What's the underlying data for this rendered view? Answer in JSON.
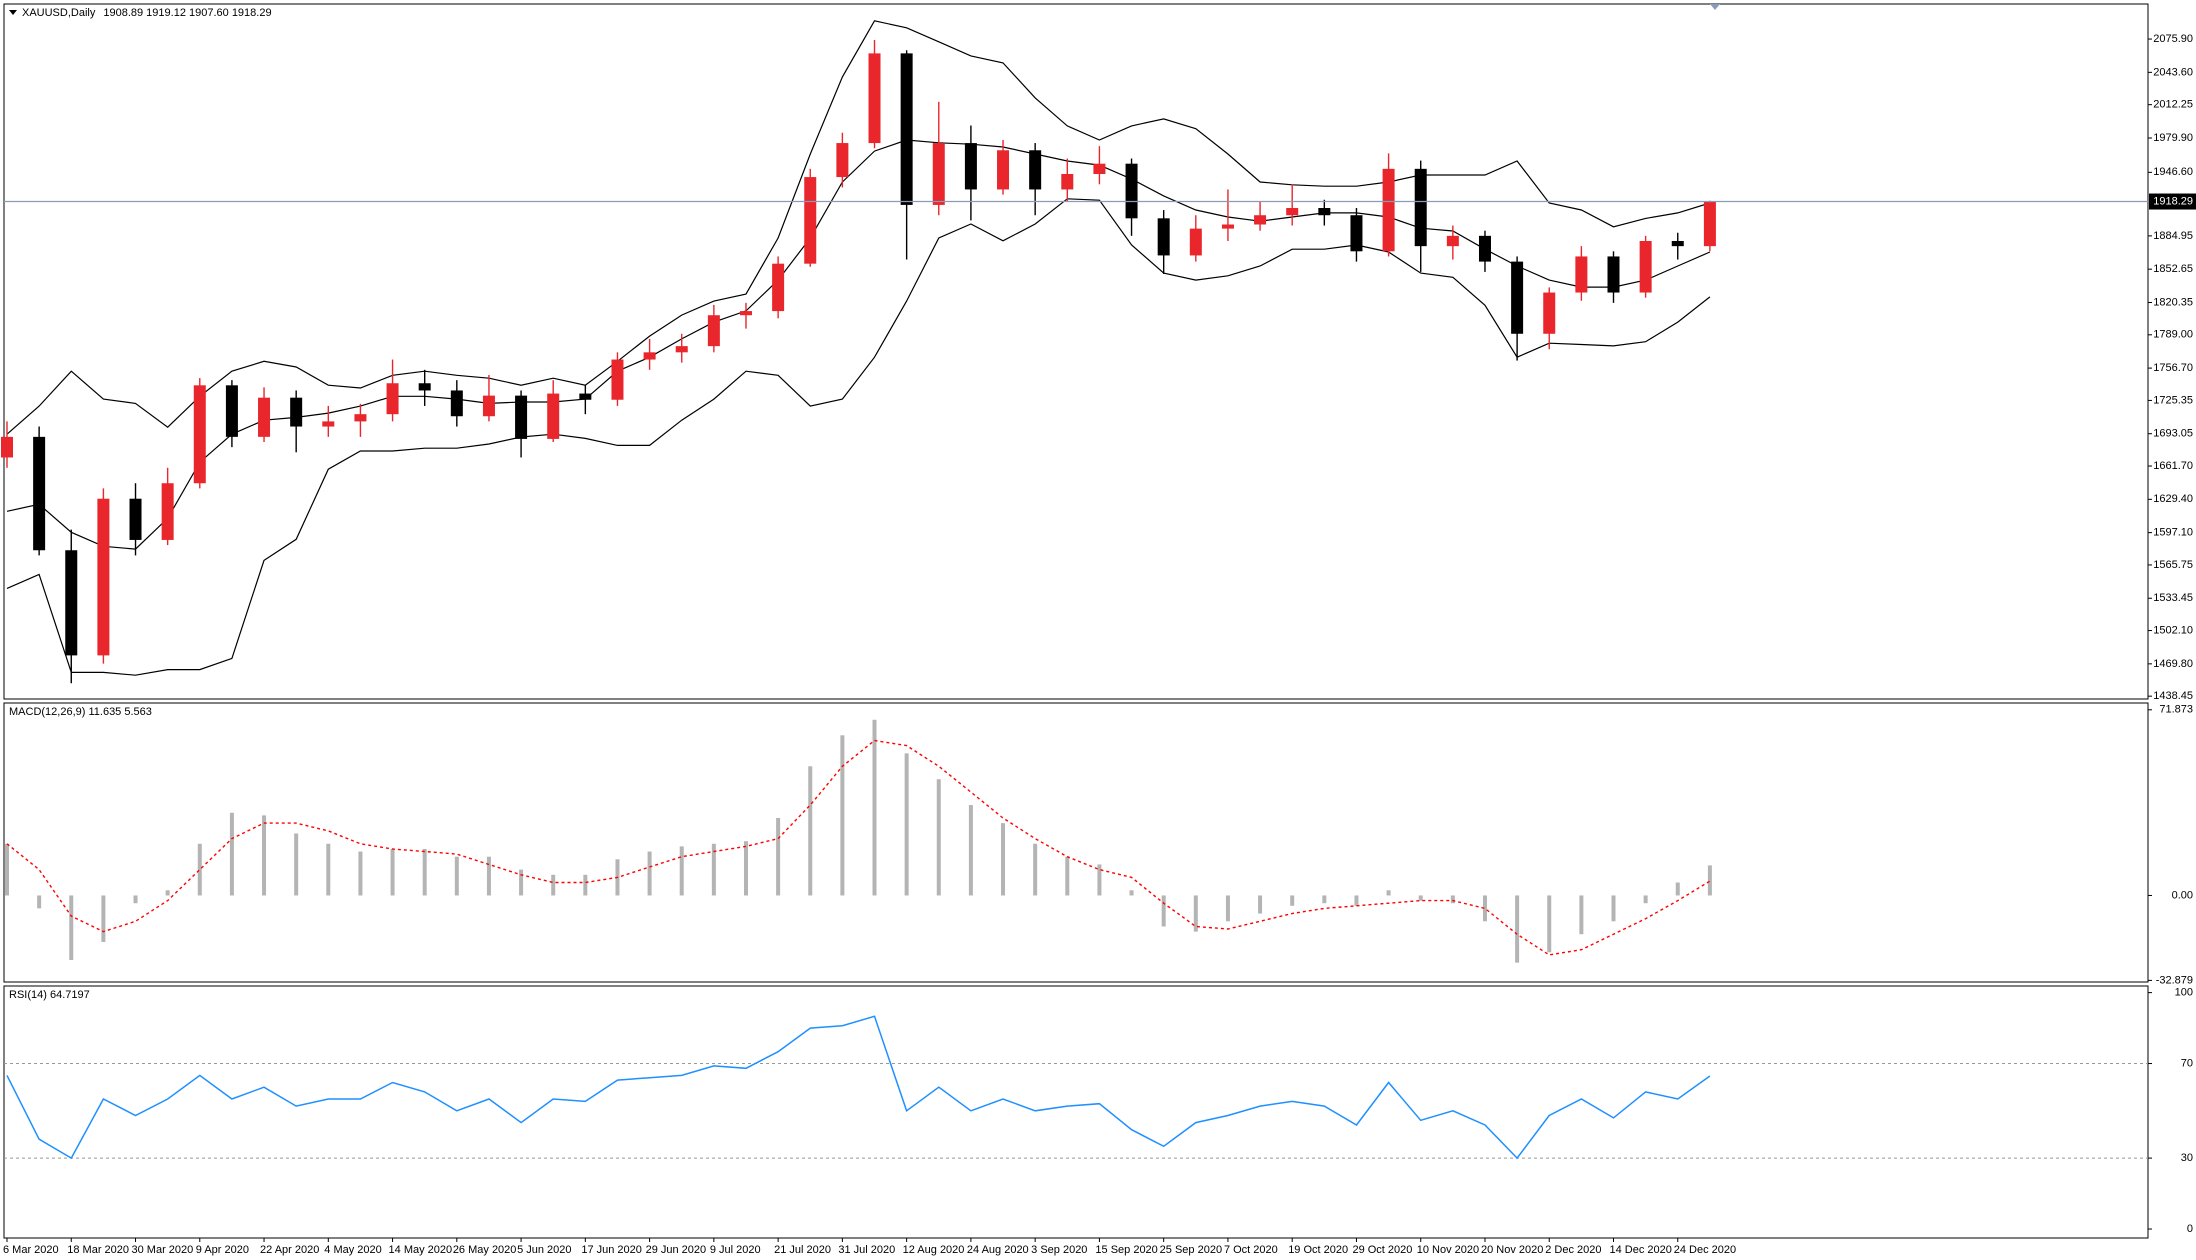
{
  "chart_data": [
    {
      "type": "candlestick",
      "title": "XAUUSD,Daily",
      "info": "1908.89 1919.12 1907.60 1918.29",
      "categories": [
        "6 Mar 2020",
        null,
        "18 Mar 2020",
        null,
        "30 Mar 2020",
        null,
        "9 Apr 2020",
        null,
        "22 Apr 2020",
        null,
        "4 May 2020",
        null,
        "14 May 2020",
        null,
        "26 May 2020",
        null,
        "5 Jun 2020",
        null,
        "17 Jun 2020",
        null,
        "29 Jun 2020",
        null,
        "9 Jul 2020",
        null,
        "21 Jul 2020",
        null,
        "31 Jul 2020",
        null,
        "12 Aug 2020",
        null,
        "24 Aug 2020",
        null,
        "3 Sep 2020",
        null,
        "15 Sep 2020",
        null,
        "25 Sep 2020",
        null,
        "7 Oct 2020",
        null,
        "19 Oct 2020",
        null,
        "29 Oct 2020",
        null,
        "10 Nov 2020",
        null,
        "20 Nov 2020",
        null,
        "2 Dec 2020",
        null,
        "14 Dec 2020",
        null,
        "24 Dec 2020",
        null
      ],
      "open": [
        1670,
        1690,
        1580,
        1478,
        1630,
        1590,
        1645,
        1740,
        1690,
        1728,
        1700,
        1705,
        1712,
        1742,
        1735,
        1710,
        1730,
        1688,
        1732,
        1726,
        1765,
        1772,
        1778,
        1808,
        1812,
        1858,
        1942,
        1975,
        2062,
        1915,
        1975,
        1930,
        1968,
        1930,
        1945,
        1955,
        1902,
        1866,
        1892,
        1896,
        1905,
        1912,
        1905,
        1870,
        1950,
        1875,
        1885,
        1860,
        1790,
        1830,
        1865,
        1830,
        1880,
        1875
      ],
      "high": [
        1705,
        1700,
        1600,
        1640,
        1645,
        1660,
        1747,
        1745,
        1738,
        1735,
        1720,
        1722,
        1765,
        1755,
        1745,
        1750,
        1735,
        1745,
        1740,
        1772,
        1785,
        1790,
        1818,
        1820,
        1865,
        1950,
        1985,
        2075,
        2065,
        2015,
        1992,
        1978,
        1975,
        1960,
        1972,
        1960,
        1910,
        1905,
        1930,
        1918,
        1935,
        1920,
        1912,
        1965,
        1958,
        1895,
        1890,
        1865,
        1835,
        1875,
        1870,
        1885,
        1888,
        1919.12
      ],
      "low": [
        1660,
        1575,
        1451,
        1470,
        1575,
        1585,
        1640,
        1680,
        1685,
        1675,
        1690,
        1690,
        1705,
        1720,
        1700,
        1705,
        1670,
        1685,
        1712,
        1720,
        1755,
        1762,
        1772,
        1795,
        1805,
        1855,
        1932,
        1970,
        1862,
        1905,
        1900,
        1925,
        1905,
        1918,
        1935,
        1885,
        1848,
        1860,
        1880,
        1890,
        1895,
        1895,
        1860,
        1865,
        1850,
        1862,
        1850,
        1764,
        1775,
        1822,
        1820,
        1825,
        1862,
        1870
      ],
      "close": [
        1690,
        1580,
        1478,
        1630,
        1590,
        1645,
        1740,
        1690,
        1728,
        1700,
        1705,
        1712,
        1742,
        1735,
        1710,
        1730,
        1688,
        1732,
        1726,
        1765,
        1772,
        1778,
        1808,
        1812,
        1858,
        1942,
        1975,
        2062,
        1915,
        1975,
        1930,
        1968,
        1930,
        1945,
        1955,
        1902,
        1866,
        1892,
        1896,
        1905,
        1912,
        1905,
        1870,
        1950,
        1875,
        1885,
        1860,
        1790,
        1830,
        1865,
        1830,
        1880,
        1875,
        1918.29
      ],
      "bands": {
        "upper": [
          1692.6,
          1719.8,
          1753.7,
          1726.6,
          1722.5,
          1699.4,
          1729.3,
          1753.7,
          1763.3,
          1757.8,
          1740.1,
          1737.4,
          1749.7,
          1753.7,
          1749.7,
          1746.9,
          1740.1,
          1746.9,
          1740.1,
          1763.3,
          1787.7,
          1808.1,
          1821.7,
          1828.5,
          1882.9,
          1964.4,
          2039.2,
          2093.6,
          2086.8,
          2073.2,
          2059.6,
          2052.8,
          2018.8,
          1991.6,
          1978.0,
          1991.6,
          1998.4,
          1988.9,
          1964.4,
          1937.2,
          1934.5,
          1933.2,
          1933.2,
          1937.2,
          1944.0,
          1944.0,
          1944.0,
          1957.6,
          1916.9,
          1910.1,
          1893.8,
          1901.9,
          1907.3,
          1916.9
        ],
        "middle": [
          1617.8,
          1624.6,
          1597.4,
          1583.8,
          1581.1,
          1611.0,
          1665.4,
          1692.6,
          1706.2,
          1708.9,
          1713.0,
          1719.8,
          1729.3,
          1729.3,
          1726.6,
          1722.5,
          1723.8,
          1723.8,
          1726.6,
          1753.7,
          1767.3,
          1785.0,
          1801.3,
          1812.2,
          1842.1,
          1882.9,
          1937.2,
          1967.2,
          1978.0,
          1975.3,
          1973.9,
          1971.2,
          1964.4,
          1957.6,
          1953.6,
          1940.0,
          1923.7,
          1910.1,
          1903.3,
          1899.2,
          1903.3,
          1907.3,
          1907.3,
          1903.3,
          1892.4,
          1889.7,
          1872.0,
          1855.7,
          1842.1,
          1835.3,
          1835.3,
          1842.1,
          1855.7,
          1869.3
        ],
        "lower": [
          1543.0,
          1556.6,
          1461.5,
          1461.5,
          1458.8,
          1464.2,
          1464.2,
          1475.1,
          1570.2,
          1590.6,
          1658.6,
          1676.3,
          1676.3,
          1679.0,
          1679.0,
          1683.1,
          1689.9,
          1692.6,
          1688.5,
          1681.7,
          1681.7,
          1706.2,
          1726.6,
          1753.7,
          1749.7,
          1719.8,
          1726.6,
          1767.3,
          1821.7,
          1882.9,
          1896.5,
          1880.2,
          1896.5,
          1920.9,
          1919.6,
          1876.1,
          1848.9,
          1842.1,
          1846.2,
          1855.7,
          1872.0,
          1872.0,
          1876.1,
          1869.3,
          1848.9,
          1844.8,
          1817.6,
          1767.3,
          1780.9,
          1779.6,
          1778.2,
          1782.3,
          1801.3,
          1825.8
        ]
      },
      "bull_color": "#e8262c",
      "bear_color": "#000000",
      "band_color": "#000000",
      "current_price": {
        "value": 1918.29,
        "label": "1918.29"
      },
      "current_price_color": "#8a9bb8",
      "ylim": [
        1435.7,
        2109.9
      ],
      "yticks": [
        {
          "value": 2075.9,
          "label": "2075.90"
        },
        {
          "value": 2043.6,
          "label": "2043.60"
        },
        2012.25,
        {
          "value": 1979.9,
          "label": "1979.90"
        },
        {
          "value": 1946.6,
          "label": "1946.60"
        },
        1884.95,
        1852.65,
        1820.35,
        {
          "value": 1789,
          "label": "1789.00"
        },
        {
          "value": 1756.7,
          "label": "1756.70"
        },
        1725.35,
        1693.05,
        {
          "value": 1661.7,
          "label": "1661.70"
        },
        {
          "value": 1629.4,
          "label": "1629.40"
        },
        {
          "value": 1597.1,
          "label": "1597.10"
        },
        1565.75,
        1533.45,
        {
          "value": 1502.1,
          "label": "1502.10"
        },
        {
          "value": 1469.8,
          "label": "1469.80"
        },
        1438.45
      ]
    },
    {
      "type": "macd",
      "title": "MACD(12,26,9) 11.635 5.563",
      "histogram": [
        20,
        -5,
        -25,
        -18,
        -3,
        2,
        20,
        32,
        31,
        24,
        20,
        17,
        18,
        18,
        15,
        15,
        10,
        8,
        8,
        14,
        17,
        19,
        20,
        21,
        30,
        50,
        62,
        68,
        55,
        45,
        35,
        28,
        20,
        15,
        12,
        2,
        -12,
        -14,
        -10,
        -7,
        -4,
        -3,
        -4,
        2,
        -2,
        -3,
        -10,
        -26,
        -22,
        -15,
        -10,
        -3,
        5,
        11.635
      ],
      "signal": [
        20,
        10,
        -8,
        -14,
        -10,
        -2,
        10,
        22,
        28,
        28,
        25,
        20,
        18,
        17,
        16,
        12,
        8,
        5,
        5,
        7,
        11,
        15,
        17,
        19,
        22,
        35,
        50,
        60,
        58,
        50,
        40,
        30,
        22,
        15,
        10,
        7,
        -3,
        -12,
        -13,
        -10,
        -7,
        -5,
        -4,
        -3,
        -2,
        -2,
        -5,
        -15,
        -23,
        -21,
        -15,
        -9,
        -2,
        5.563
      ],
      "histogram_color": "#b4b4b4",
      "signal_color": "#ff0000",
      "ylim": [
        -33.5,
        74.5
      ],
      "yticks": [
        71.873,
        {
          "value": 0,
          "label": "0.00"
        },
        -32.879
      ]
    },
    {
      "type": "line",
      "title": "RSI(14) 64.7197",
      "values": [
        65,
        38,
        30,
        55,
        48,
        55,
        65,
        55,
        60,
        52,
        55,
        55,
        62,
        58,
        50,
        55,
        45,
        55,
        54,
        63,
        64,
        65,
        69,
        68,
        75,
        85,
        86,
        90,
        50,
        60,
        50,
        55,
        50,
        52,
        53,
        42,
        35,
        45,
        48,
        52,
        54,
        52,
        44,
        62,
        46,
        50,
        44,
        30,
        48,
        55,
        47,
        58,
        55,
        64.7197
      ],
      "color": "#1e90ff",
      "levels": [
        30,
        70
      ],
      "ylim": [
        -3.8,
        102.8
      ],
      "yticks": [
        0,
        30,
        70,
        100
      ]
    }
  ]
}
